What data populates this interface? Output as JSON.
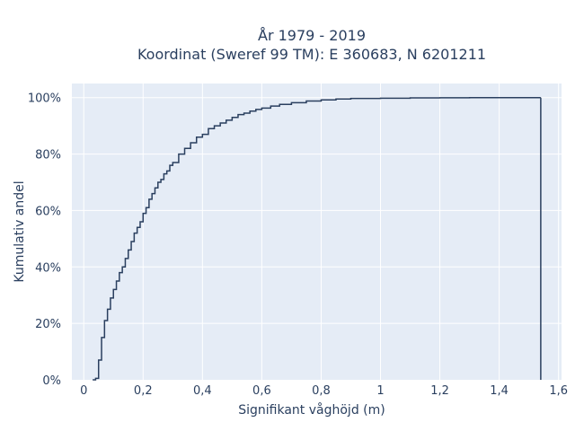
{
  "chart_data": {
    "type": "line",
    "line_shape": "step",
    "title_lines": [
      "År 1979 - 2019",
      "Koordinat (Sweref 99 TM): E 360683, N 6201211"
    ],
    "xlabel": "Signifikant våghöjd (m)",
    "ylabel": "Kumulativ andel",
    "xlim": [
      -0.04,
      1.61
    ],
    "ylim": [
      0,
      1.05
    ],
    "x_ticks": [
      0,
      0.2,
      0.4,
      0.6,
      0.8,
      1,
      1.2,
      1.4,
      1.6
    ],
    "x_tick_labels": [
      "0",
      "0,2",
      "0,4",
      "0,6",
      "0,8",
      "1",
      "1,2",
      "1,4",
      "1,6"
    ],
    "y_ticks": [
      0,
      0.2,
      0.4,
      0.6,
      0.8,
      1.0
    ],
    "y_tick_labels": [
      "0%",
      "20%",
      "40%",
      "60%",
      "80%",
      "100%"
    ],
    "grid": true,
    "plot_background": "#e5ecf6",
    "line_color": "#2a3f5f",
    "series": [
      {
        "x": [
          0.03,
          0.04,
          0.05,
          0.06,
          0.07,
          0.08,
          0.09,
          0.1,
          0.11,
          0.12,
          0.13,
          0.14,
          0.15,
          0.16,
          0.17,
          0.18,
          0.19,
          0.2,
          0.21,
          0.22,
          0.23,
          0.24,
          0.25,
          0.26,
          0.27,
          0.28,
          0.29,
          0.3,
          0.32,
          0.34,
          0.36,
          0.38,
          0.4,
          0.42,
          0.44,
          0.46,
          0.48,
          0.5,
          0.52,
          0.54,
          0.56,
          0.58,
          0.6,
          0.63,
          0.66,
          0.7,
          0.75,
          0.8,
          0.85,
          0.9,
          1.0,
          1.1,
          1.2,
          1.3,
          1.4,
          1.54
        ],
        "y": [
          0.0,
          0.005,
          0.07,
          0.15,
          0.21,
          0.25,
          0.29,
          0.32,
          0.35,
          0.38,
          0.4,
          0.43,
          0.46,
          0.49,
          0.52,
          0.54,
          0.56,
          0.59,
          0.61,
          0.64,
          0.66,
          0.68,
          0.7,
          0.71,
          0.73,
          0.74,
          0.76,
          0.77,
          0.8,
          0.82,
          0.84,
          0.86,
          0.87,
          0.89,
          0.9,
          0.91,
          0.92,
          0.93,
          0.94,
          0.945,
          0.952,
          0.958,
          0.963,
          0.97,
          0.976,
          0.982,
          0.988,
          0.992,
          0.995,
          0.997,
          0.998,
          0.999,
          0.9995,
          0.9998,
          0.9999,
          1.0
        ]
      }
    ]
  }
}
